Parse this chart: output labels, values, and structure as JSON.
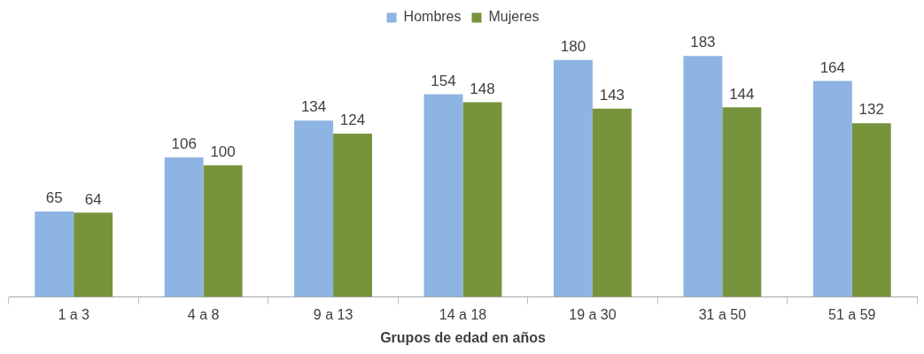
{
  "chart_data": {
    "type": "bar",
    "xlabel": "Grupos de edad en años",
    "categories": [
      "1 a 3",
      "4 a 8",
      "9 a 13",
      "14 a 18",
      "19 a 30",
      "31 a 50",
      "51 a 59"
    ],
    "series": [
      {
        "name": "Hombres",
        "color": "#8db4e2",
        "values": [
          65,
          106,
          134,
          154,
          180,
          183,
          164
        ]
      },
      {
        "name": "Mujeres",
        "color": "#77933c",
        "values": [
          64,
          100,
          124,
          148,
          143,
          144,
          132
        ]
      }
    ],
    "data_labels": true,
    "legend": "top",
    "grid": false,
    "tick_labels": "x"
  }
}
